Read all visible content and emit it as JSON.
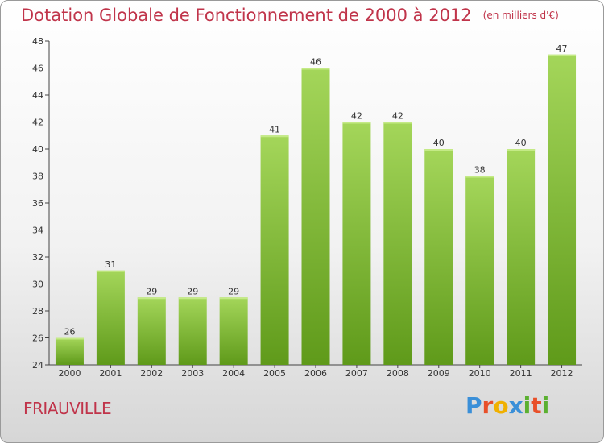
{
  "title": "Dotation Globale de Fonctionnement de 2000 à 2012",
  "unit": "(en milliers d'€)",
  "town": "FRIAUVILLE",
  "logo": {
    "letters": [
      "P",
      "r",
      "o",
      "x",
      "i",
      "t",
      "i"
    ],
    "colors": [
      "#3a8fd8",
      "#e8502a",
      "#f0b000",
      "#3a8fd8",
      "#5bb030",
      "#e8502a",
      "#5bb030"
    ]
  },
  "chart_data": {
    "type": "bar",
    "title": "Dotation Globale de Fonctionnement de 2000 à 2012",
    "subtitle": "(en milliers d'€)",
    "xlabel": "",
    "ylabel": "",
    "categories": [
      "2000",
      "2001",
      "2002",
      "2003",
      "2004",
      "2005",
      "2006",
      "2007",
      "2008",
      "2009",
      "2010",
      "2011",
      "2012"
    ],
    "values": [
      26,
      31,
      29,
      29,
      29,
      41,
      46,
      42,
      42,
      40,
      38,
      40,
      47
    ],
    "ylim": [
      24,
      48
    ],
    "yticks": [
      24,
      26,
      28,
      30,
      32,
      34,
      36,
      38,
      40,
      42,
      44,
      46,
      48
    ],
    "grid": false,
    "colors": {
      "bar_light": "#a4d65a",
      "bar_dark": "#5f9a1a",
      "axis": "#444444",
      "text": "#333333"
    }
  }
}
